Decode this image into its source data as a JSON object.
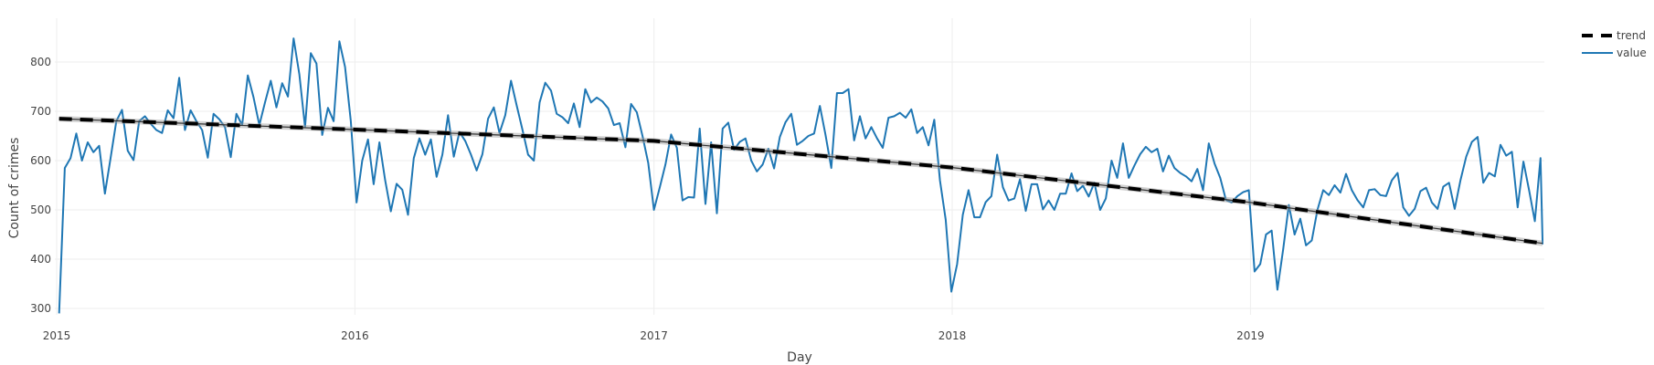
{
  "chart_data": {
    "type": "line",
    "title": "",
    "xlabel": "Day",
    "ylabel": "Count of crimes",
    "x_range": [
      "2015-01-01",
      "2019-12-29"
    ],
    "ylim": [
      285,
      880
    ],
    "y_ticks": [
      300,
      400,
      500,
      600,
      700,
      800
    ],
    "x_ticks": [
      "2015",
      "2016",
      "2017",
      "2018",
      "2019"
    ],
    "grid": true,
    "legend_position": "top-right",
    "legend": [
      "trend",
      "value"
    ],
    "colors": {
      "value": "#1f77b4",
      "trend": "#000000"
    },
    "x_start": "2015-01-04",
    "x_step_days": 7,
    "series": [
      {
        "name": "value",
        "values": [
          290,
          585,
          605,
          655,
          600,
          637,
          617,
          630,
          533,
          605,
          680,
          703,
          620,
          601,
          680,
          690,
          675,
          662,
          656,
          702,
          686,
          768,
          662,
          702,
          680,
          662,
          606,
          695,
          684,
          668,
          607,
          695,
          672,
          773,
          728,
          672,
          718,
          762,
          708,
          757,
          730,
          848,
          775,
          668,
          818,
          797,
          652,
          707,
          680,
          842,
          790,
          680,
          515,
          600,
          643,
          552,
          637,
          560,
          497,
          553,
          541,
          490,
          605,
          645,
          612,
          643,
          567,
          612,
          692,
          608,
          658,
          640,
          612,
          580,
          613,
          685,
          708,
          656,
          692,
          762,
          712,
          663,
          612,
          600,
          718,
          758,
          742,
          695,
          688,
          676,
          716,
          668,
          745,
          718,
          728,
          720,
          706,
          672,
          676,
          627,
          715,
          698,
          650,
          595,
          500,
          545,
          592,
          653,
          626,
          519,
          526,
          525,
          665,
          512,
          637,
          493,
          665,
          677,
          622,
          638,
          645,
          600,
          578,
          592,
          624,
          584,
          648,
          678,
          695,
          632,
          640,
          650,
          655,
          711,
          652,
          585,
          737,
          737,
          745,
          641,
          690,
          645,
          668,
          645,
          626,
          687,
          690,
          697,
          687,
          704,
          656,
          668,
          631,
          683,
          560,
          480,
          334,
          390,
          490,
          540,
          485,
          485,
          516,
          528,
          612,
          546,
          519,
          523,
          562,
          498,
          552,
          552,
          501,
          519,
          500,
          533,
          533,
          574,
          538,
          549,
          527,
          555,
          500,
          523,
          600,
          565,
          635,
          565,
          590,
          613,
          628,
          617,
          624,
          578,
          610,
          585,
          575,
          568,
          558,
          583,
          540,
          635,
          594,
          565,
          520,
          515,
          528,
          536,
          540,
          375,
          390,
          450,
          458,
          338,
          420,
          510,
          450,
          482,
          428,
          438,
          500,
          540,
          530,
          550,
          535,
          573,
          540,
          520,
          505,
          540,
          542,
          530,
          528,
          560,
          575,
          505,
          488,
          502,
          538,
          545,
          515,
          502,
          547,
          555,
          502,
          560,
          608,
          638,
          648,
          555,
          575,
          568,
          632,
          610,
          618,
          505,
          598,
          540,
          477,
          605,
          440,
          432,
          430
        ]
      },
      {
        "name": "trend",
        "values": [
          685,
          663,
          640,
          586,
          515,
          432
        ]
      }
    ],
    "trend_x": [
      "2015-01-04",
      "2016-01-01",
      "2017-01-01",
      "2018-01-01",
      "2019-01-01",
      "2019-12-29"
    ]
  },
  "legend": {
    "trend_label": "trend",
    "value_label": "value"
  },
  "axes": {
    "x_title": "Day",
    "y_title": "Count of crimes"
  }
}
